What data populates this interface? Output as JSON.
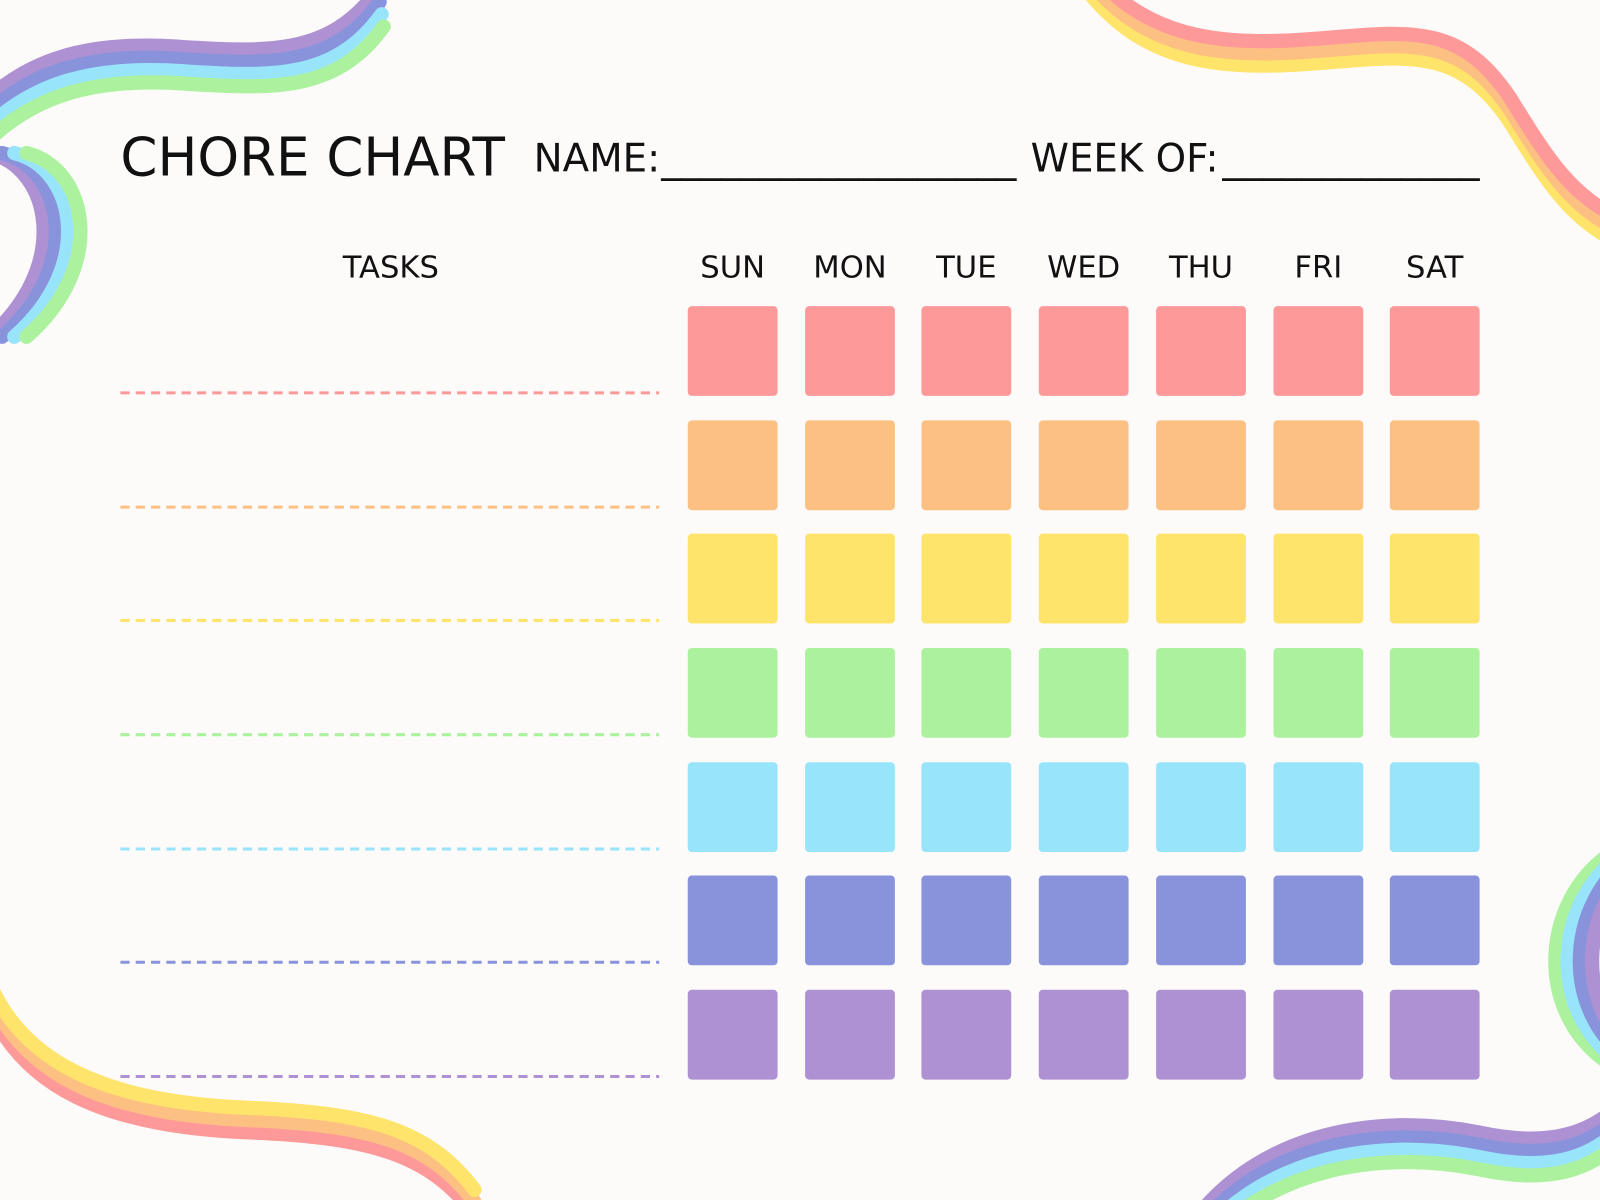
{
  "header": {
    "title": "CHORE CHART",
    "name_label": "NAME:",
    "name_blank": "__________________",
    "week_label": "WEEK OF:",
    "week_blank": "_____________"
  },
  "columns": {
    "tasks": "TASKS",
    "days": [
      "SUN",
      "MON",
      "TUE",
      "WED",
      "THU",
      "FRI",
      "SAT"
    ]
  },
  "rows": {
    "count": 7,
    "colors": [
      "#fe9999",
      "#fdc083",
      "#fee46b",
      "#acf29e",
      "#97e4fb",
      "#8893dc",
      "#ad91d2"
    ]
  },
  "decoration": {
    "warm_rainbow": [
      "#fe9999",
      "#fdc083",
      "#fee46b"
    ],
    "cool_rainbow": [
      "#ad91d2",
      "#8893dc",
      "#97e4fb",
      "#acf29e"
    ]
  }
}
